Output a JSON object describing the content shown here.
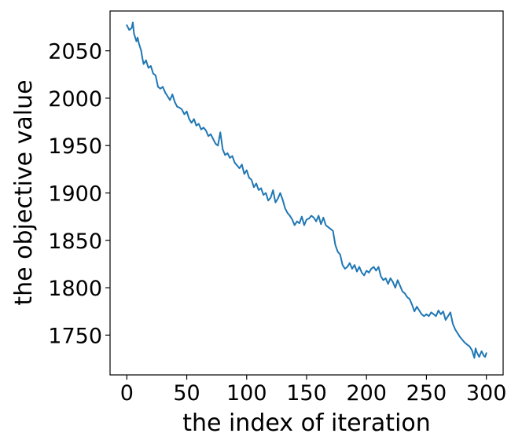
{
  "chart_data": {
    "type": "line",
    "title": "",
    "xlabel": "the index of iteration",
    "ylabel": "the objective value",
    "xlim": [
      -14,
      314
    ],
    "ylim": [
      1708,
      2092
    ],
    "x_ticks": [
      0,
      50,
      100,
      150,
      200,
      250,
      300
    ],
    "y_ticks": [
      1750,
      1800,
      1850,
      1900,
      1950,
      2000,
      2050
    ],
    "grid": false,
    "legend": "none",
    "series": [
      {
        "color": "#1f77b4",
        "points": [
          [
            0,
            2077
          ],
          [
            2,
            2072
          ],
          [
            4,
            2074
          ],
          [
            5,
            2080
          ],
          [
            6,
            2068
          ],
          [
            8,
            2060
          ],
          [
            9,
            2064
          ],
          [
            10,
            2058
          ],
          [
            12,
            2050
          ],
          [
            13,
            2042
          ],
          [
            14,
            2036
          ],
          [
            16,
            2040
          ],
          [
            18,
            2032
          ],
          [
            20,
            2034
          ],
          [
            22,
            2026
          ],
          [
            24,
            2024
          ],
          [
            26,
            2012
          ],
          [
            28,
            2010
          ],
          [
            30,
            2012
          ],
          [
            32,
            2006
          ],
          [
            34,
            2002
          ],
          [
            36,
            1998
          ],
          [
            38,
            2004
          ],
          [
            40,
            1996
          ],
          [
            42,
            1991
          ],
          [
            44,
            1990
          ],
          [
            46,
            1988
          ],
          [
            48,
            1983
          ],
          [
            50,
            1986
          ],
          [
            52,
            1978
          ],
          [
            54,
            1974
          ],
          [
            56,
            1978
          ],
          [
            58,
            1971
          ],
          [
            60,
            1973
          ],
          [
            62,
            1967
          ],
          [
            64,
            1969
          ],
          [
            66,
            1966
          ],
          [
            68,
            1960
          ],
          [
            70,
            1962
          ],
          [
            72,
            1957
          ],
          [
            74,
            1952
          ],
          [
            76,
            1950
          ],
          [
            78,
            1964
          ],
          [
            80,
            1946
          ],
          [
            82,
            1940
          ],
          [
            84,
            1942
          ],
          [
            86,
            1937
          ],
          [
            88,
            1939
          ],
          [
            90,
            1932
          ],
          [
            92,
            1929
          ],
          [
            94,
            1926
          ],
          [
            96,
            1930
          ],
          [
            98,
            1920
          ],
          [
            100,
            1924
          ],
          [
            102,
            1916
          ],
          [
            104,
            1914
          ],
          [
            106,
            1906
          ],
          [
            108,
            1910
          ],
          [
            110,
            1903
          ],
          [
            112,
            1905
          ],
          [
            114,
            1898
          ],
          [
            116,
            1900
          ],
          [
            118,
            1892
          ],
          [
            120,
            1895
          ],
          [
            122,
            1903
          ],
          [
            124,
            1890
          ],
          [
            126,
            1894
          ],
          [
            128,
            1900
          ],
          [
            130,
            1893
          ],
          [
            132,
            1884
          ],
          [
            134,
            1879
          ],
          [
            136,
            1876
          ],
          [
            138,
            1872
          ],
          [
            140,
            1866
          ],
          [
            142,
            1870
          ],
          [
            144,
            1868
          ],
          [
            146,
            1875
          ],
          [
            148,
            1866
          ],
          [
            150,
            1872
          ],
          [
            152,
            1873
          ],
          [
            154,
            1876
          ],
          [
            156,
            1874
          ],
          [
            158,
            1870
          ],
          [
            160,
            1876
          ],
          [
            162,
            1867
          ],
          [
            164,
            1874
          ],
          [
            166,
            1866
          ],
          [
            168,
            1864
          ],
          [
            170,
            1862
          ],
          [
            172,
            1860
          ],
          [
            174,
            1845
          ],
          [
            176,
            1838
          ],
          [
            178,
            1835
          ],
          [
            180,
            1824
          ],
          [
            182,
            1820
          ],
          [
            184,
            1822
          ],
          [
            186,
            1826
          ],
          [
            188,
            1820
          ],
          [
            190,
            1824
          ],
          [
            192,
            1817
          ],
          [
            194,
            1822
          ],
          [
            196,
            1816
          ],
          [
            198,
            1813
          ],
          [
            200,
            1818
          ],
          [
            202,
            1816
          ],
          [
            204,
            1820
          ],
          [
            206,
            1822
          ],
          [
            208,
            1818
          ],
          [
            210,
            1822
          ],
          [
            212,
            1812
          ],
          [
            214,
            1808
          ],
          [
            216,
            1810
          ],
          [
            218,
            1804
          ],
          [
            220,
            1810
          ],
          [
            222,
            1806
          ],
          [
            224,
            1800
          ],
          [
            226,
            1808
          ],
          [
            228,
            1802
          ],
          [
            230,
            1796
          ],
          [
            232,
            1794
          ],
          [
            234,
            1790
          ],
          [
            236,
            1788
          ],
          [
            238,
            1782
          ],
          [
            240,
            1775
          ],
          [
            242,
            1780
          ],
          [
            244,
            1776
          ],
          [
            246,
            1772
          ],
          [
            248,
            1770
          ],
          [
            250,
            1772
          ],
          [
            252,
            1770
          ],
          [
            254,
            1774
          ],
          [
            256,
            1772
          ],
          [
            258,
            1770
          ],
          [
            260,
            1776
          ],
          [
            262,
            1772
          ],
          [
            264,
            1775
          ],
          [
            266,
            1766
          ],
          [
            268,
            1770
          ],
          [
            270,
            1774
          ],
          [
            272,
            1762
          ],
          [
            274,
            1756
          ],
          [
            276,
            1752
          ],
          [
            278,
            1748
          ],
          [
            280,
            1745
          ],
          [
            282,
            1742
          ],
          [
            284,
            1740
          ],
          [
            286,
            1738
          ],
          [
            288,
            1734
          ],
          [
            290,
            1726
          ],
          [
            291,
            1736
          ],
          [
            292,
            1732
          ],
          [
            294,
            1727
          ],
          [
            296,
            1733
          ],
          [
            298,
            1728
          ],
          [
            299,
            1727
          ],
          [
            300,
            1731
          ]
        ]
      }
    ]
  }
}
